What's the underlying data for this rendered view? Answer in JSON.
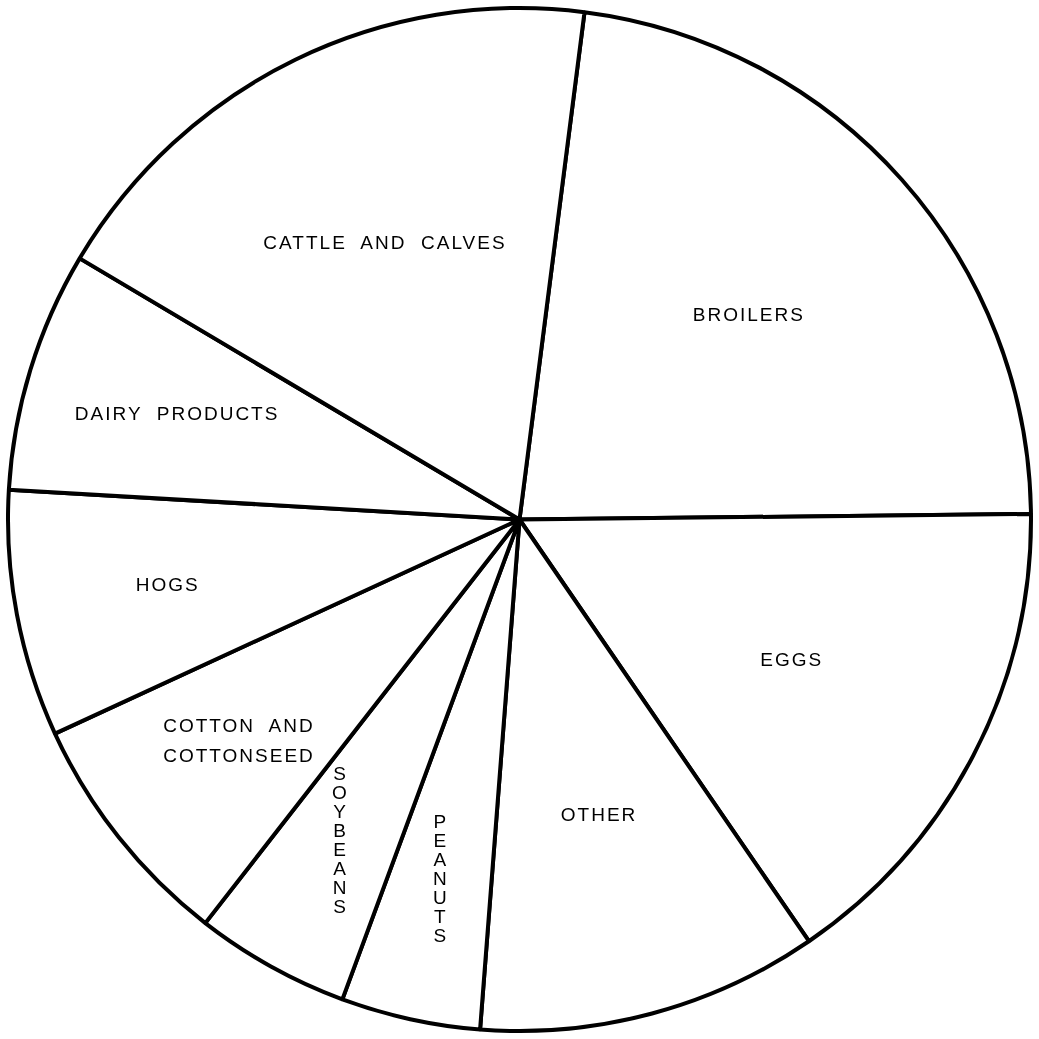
{
  "chart_data": {
    "type": "pie",
    "categories": [
      "BROILERS",
      "EGGS",
      "OTHER",
      "PEANUTS",
      "SOYBEANS",
      "COTTON AND COTTONSEED",
      "HOGS",
      "DAIRY PRODUCTS",
      "CATTLE AND CALVES"
    ],
    "values": [
      22.8,
      15.6,
      10.8,
      4.4,
      4.9,
      7.6,
      7.8,
      7.6,
      18.5
    ],
    "colors": [
      "#ffffff",
      "#ffffff",
      "#ffffff",
      "#ffffff",
      "#ffffff",
      "#ffffff",
      "#ffffff",
      "#ffffff",
      "#ffffff"
    ]
  }
}
